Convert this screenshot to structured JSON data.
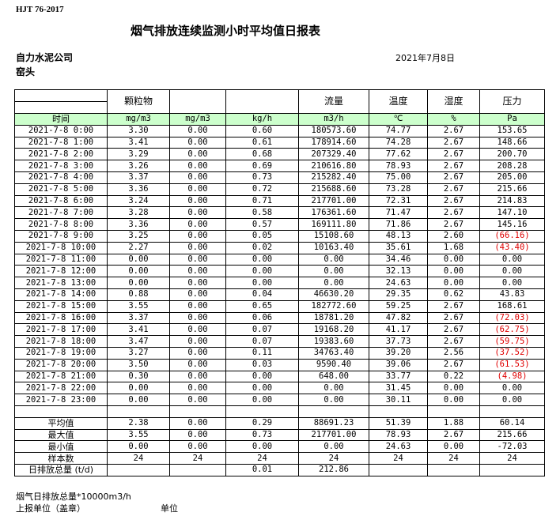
{
  "standard": "HJT  76-2017",
  "title": "烟气排放连续监测小时平均值日报表",
  "company": "自力水泥公司",
  "date": "2021年7月8日",
  "location": "窑头",
  "negative_color": "#e00000",
  "unit_header_color": "#ccffcc",
  "headers": [
    "",
    "颗粒物",
    "",
    "",
    "流量",
    "温度",
    "湿度",
    "压力"
  ],
  "units": [
    "时间",
    "mg/m3",
    "mg/m3",
    "kg/h",
    "m3/h",
    "℃",
    "%",
    "Pa"
  ],
  "rows": [
    [
      "2021-7-8 0:00",
      "3.30",
      "0.00",
      "0.60",
      "180573.60",
      "74.77",
      "2.67",
      "153.65"
    ],
    [
      "2021-7-8 1:00",
      "3.41",
      "0.00",
      "0.61",
      "178914.60",
      "74.28",
      "2.67",
      "148.66"
    ],
    [
      "2021-7-8 2:00",
      "3.29",
      "0.00",
      "0.68",
      "207329.40",
      "77.62",
      "2.67",
      "200.70"
    ],
    [
      "2021-7-8 3:00",
      "3.26",
      "0.00",
      "0.69",
      "210616.80",
      "78.93",
      "2.67",
      "208.28"
    ],
    [
      "2021-7-8 4:00",
      "3.37",
      "0.00",
      "0.73",
      "215282.40",
      "75.00",
      "2.67",
      "205.00"
    ],
    [
      "2021-7-8 5:00",
      "3.36",
      "0.00",
      "0.72",
      "215688.60",
      "73.28",
      "2.67",
      "215.66"
    ],
    [
      "2021-7-8 6:00",
      "3.24",
      "0.00",
      "0.71",
      "217701.00",
      "72.31",
      "2.67",
      "214.83"
    ],
    [
      "2021-7-8 7:00",
      "3.28",
      "0.00",
      "0.58",
      "176361.60",
      "71.47",
      "2.67",
      "147.10"
    ],
    [
      "2021-7-8 8:00",
      "3.36",
      "0.00",
      "0.57",
      "169111.80",
      "71.86",
      "2.67",
      "145.16"
    ],
    [
      "2021-7-8 9:00",
      "3.25",
      "0.00",
      "0.05",
      "15108.60",
      "48.13",
      "2.60",
      "(66.16)"
    ],
    [
      "2021-7-8 10:00",
      "2.27",
      "0.00",
      "0.02",
      "10163.40",
      "35.61",
      "1.68",
      "(43.40)"
    ],
    [
      "2021-7-8 11:00",
      "0.00",
      "0.00",
      "0.00",
      "0.00",
      "34.46",
      "0.00",
      "0.00"
    ],
    [
      "2021-7-8 12:00",
      "0.00",
      "0.00",
      "0.00",
      "0.00",
      "32.13",
      "0.00",
      "0.00"
    ],
    [
      "2021-7-8 13:00",
      "0.00",
      "0.00",
      "0.00",
      "0.00",
      "24.63",
      "0.00",
      "0.00"
    ],
    [
      "2021-7-8 14:00",
      "0.88",
      "0.00",
      "0.04",
      "46630.20",
      "29.35",
      "0.62",
      "43.83"
    ],
    [
      "2021-7-8 15:00",
      "3.55",
      "0.00",
      "0.65",
      "182772.60",
      "59.25",
      "2.67",
      "168.61"
    ],
    [
      "2021-7-8 16:00",
      "3.37",
      "0.00",
      "0.06",
      "18781.20",
      "47.82",
      "2.67",
      "(72.03)"
    ],
    [
      "2021-7-8 17:00",
      "3.41",
      "0.00",
      "0.07",
      "19168.20",
      "41.17",
      "2.67",
      "(62.75)"
    ],
    [
      "2021-7-8 18:00",
      "3.47",
      "0.00",
      "0.07",
      "19383.60",
      "37.73",
      "2.67",
      "(59.75)"
    ],
    [
      "2021-7-8 19:00",
      "3.27",
      "0.00",
      "0.11",
      "34763.40",
      "39.20",
      "2.56",
      "(37.52)"
    ],
    [
      "2021-7-8 20:00",
      "3.50",
      "0.00",
      "0.03",
      "9590.40",
      "39.06",
      "2.67",
      "(61.53)"
    ],
    [
      "2021-7-8 21:00",
      "0.30",
      "0.00",
      "0.00",
      "648.00",
      "33.77",
      "0.22",
      "(4.98)"
    ],
    [
      "2021-7-8 22:00",
      "0.00",
      "0.00",
      "0.00",
      "0.00",
      "31.45",
      "0.00",
      "0.00"
    ],
    [
      "2021-7-8 23:00",
      "0.00",
      "0.00",
      "0.00",
      "0.00",
      "30.11",
      "0.00",
      "0.00"
    ]
  ],
  "summary": [
    [
      "平均值",
      "2.38",
      "0.00",
      "0.29",
      "88691.23",
      "51.39",
      "1.88",
      "60.14"
    ],
    [
      "最大值",
      "3.55",
      "0.00",
      "0.73",
      "217701.00",
      "78.93",
      "2.67",
      "215.66"
    ],
    [
      "最小值",
      "0.00",
      "0.00",
      "0.00",
      "0.00",
      "24.63",
      "0.00",
      "-72.03"
    ],
    [
      "样本数",
      "24",
      "24",
      "24",
      "24",
      "24",
      "24",
      "24"
    ],
    [
      "日排放总量 (t/d)",
      "",
      "",
      "0.01",
      "212.86",
      "",
      "",
      ""
    ]
  ],
  "footer": {
    "flue_total": "烟气日排放总量*10000m3/h",
    "reporting_unit": "上报单位（盖章）",
    "unit": "单位"
  }
}
